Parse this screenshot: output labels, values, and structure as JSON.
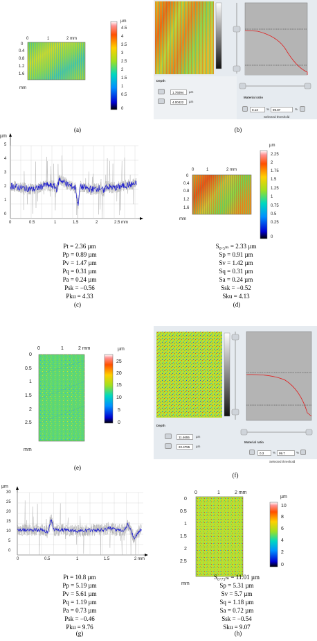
{
  "figure": {
    "a": {
      "label": "(a)",
      "x_ticks": [
        "0",
        "1",
        "2 mm"
      ],
      "y_ticks": [
        "0",
        "0.4",
        "0.8",
        "1.2",
        "1.6"
      ],
      "y_unit": "mm",
      "colorbar_unit": "µm",
      "colorbar_ticks": [
        "4.5",
        "4",
        "3.5",
        "3",
        "2.5",
        "2",
        "1.5",
        "1",
        "0.5",
        "0"
      ]
    },
    "b": {
      "label": "(b)",
      "depth_label": "Depth",
      "depth_values": [
        "1.76094",
        "4.00422"
      ],
      "depth_unit": "µm",
      "ratio_label": "Material ratio",
      "ratio_values": [
        "0.13",
        "99.87"
      ],
      "ratio_unit": "%",
      "threshold_label": "Selected threshold"
    },
    "c": {
      "label": "(c)",
      "y_unit": "µm",
      "y_ticks": [
        "5",
        "4",
        "3",
        "2",
        "1",
        "0"
      ],
      "x_ticks": [
        "0",
        "0.5",
        "1",
        "1.5",
        "2",
        "2.5 mm"
      ],
      "params": [
        "Pt = 2.36 µm",
        "Pp = 0.89 µm",
        "Pv = 1.47 µm",
        "Pq = 0.31 µm",
        "Pa = 0.24 µm",
        "Psk = −0.56",
        "Pku = 4.33"
      ]
    },
    "d": {
      "label": "(d)",
      "x_ticks": [
        "0",
        "1",
        "2 mm"
      ],
      "y_ticks": [
        "0",
        "0.4",
        "0.8",
        "1.2",
        "1.6"
      ],
      "y_unit": "mm",
      "colorbar_unit": "µm",
      "colorbar_ticks": [
        "2.25",
        "2",
        "1.75",
        "1.5",
        "1.25",
        "1",
        "0.75",
        "0.5",
        "0.25",
        "0"
      ],
      "params": [
        "S₀.₅ₘ = 2.33 µm",
        "Sp = 0.91 µm",
        "Sv = 1.42 µm",
        "Sq = 0.31 µm",
        "Sa = 0.24 µm",
        "Ssk = −0.52",
        "Sku = 4.13"
      ]
    },
    "e": {
      "label": "(e)",
      "x_ticks": [
        "0",
        "1",
        "2 mm"
      ],
      "y_ticks": [
        "0",
        "0.5",
        "1",
        "1.5",
        "2",
        "2.5"
      ],
      "y_unit": "mm",
      "colorbar_unit": "µm",
      "colorbar_ticks": [
        "25",
        "20",
        "15",
        "10",
        "5",
        "0"
      ]
    },
    "f": {
      "label": "(f)",
      "depth_label": "Depth",
      "depth_values": [
        "11.4655",
        "22.4755"
      ],
      "depth_unit": "µm",
      "ratio_label": "Material ratio",
      "ratio_values": [
        "0.3",
        "99.7"
      ],
      "ratio_unit": "%",
      "threshold_label": "Selected threshold"
    },
    "g": {
      "label": "(g)",
      "y_unit": "µm",
      "y_ticks": [
        "30",
        "25",
        "20",
        "15",
        "10",
        "5",
        "0"
      ],
      "x_ticks": [
        "0",
        "0.5",
        "1",
        "1.5",
        "2 mm"
      ],
      "params": [
        "Pt = 10.8 µm",
        "Pp = 5.19 µm",
        "Pv = 5.61 µm",
        "Pq = 1.19 µm",
        "Pa = 0.73 µm",
        "Psk = −0.46",
        "Pku = 9.76"
      ]
    },
    "h": {
      "label": "(h)",
      "x_ticks": [
        "0",
        "1",
        "2 mm"
      ],
      "y_ticks": [
        "0",
        "0.5",
        "1",
        "1.5",
        "2",
        "2.5"
      ],
      "y_unit": "mm",
      "colorbar_unit": "µm",
      "colorbar_ticks": [
        "10",
        "8",
        "6",
        "4",
        "2",
        "0"
      ],
      "params": [
        "S₀.₇₅ₘ = 11.01 µm",
        "Sp = 5.31 µm",
        "Sv = 5.7 µm",
        "Sq = 1.18 µm",
        "Sa = 0.72 µm",
        "Ssk = −0.54",
        "Sku = 9.07"
      ]
    }
  },
  "chart_data": [
    {
      "type": "line",
      "panel": "c",
      "xlabel": "mm",
      "ylabel": "µm",
      "xlim": [
        0,
        2.75
      ],
      "ylim": [
        0,
        5
      ],
      "series": [
        {
          "values_mean": 2.2,
          "spread": 0.25,
          "color": "#1a1ad0",
          "x": [
            0,
            0.25,
            0.5,
            0.75,
            0.95,
            1.0,
            1.05,
            1.25,
            1.4,
            1.45,
            1.5,
            1.75,
            1.95,
            2.0,
            2.05,
            2.25,
            2.5,
            2.75
          ],
          "y": [
            2.25,
            2.1,
            2.0,
            2.3,
            2.2,
            2.0,
            2.7,
            2.3,
            2.1,
            0.9,
            2.2,
            2.0,
            2.1,
            1.8,
            2.2,
            2.1,
            2.3,
            2.4
          ]
        }
      ]
    },
    {
      "type": "line",
      "panel": "g",
      "xlabel": "mm",
      "ylabel": "µm",
      "xlim": [
        0,
        2.05
      ],
      "ylim": [
        0,
        30
      ],
      "series": [
        {
          "color": "#1a1ad0",
          "x": [
            0,
            0.2,
            0.4,
            0.5,
            0.55,
            0.6,
            0.8,
            1.0,
            1.2,
            1.4,
            1.5,
            1.6,
            1.75,
            1.8,
            1.9,
            2.0
          ],
          "y": [
            12,
            12,
            12,
            11,
            17,
            12,
            12,
            11.5,
            12,
            12,
            13,
            12,
            12,
            15,
            8,
            12
          ]
        }
      ]
    }
  ]
}
